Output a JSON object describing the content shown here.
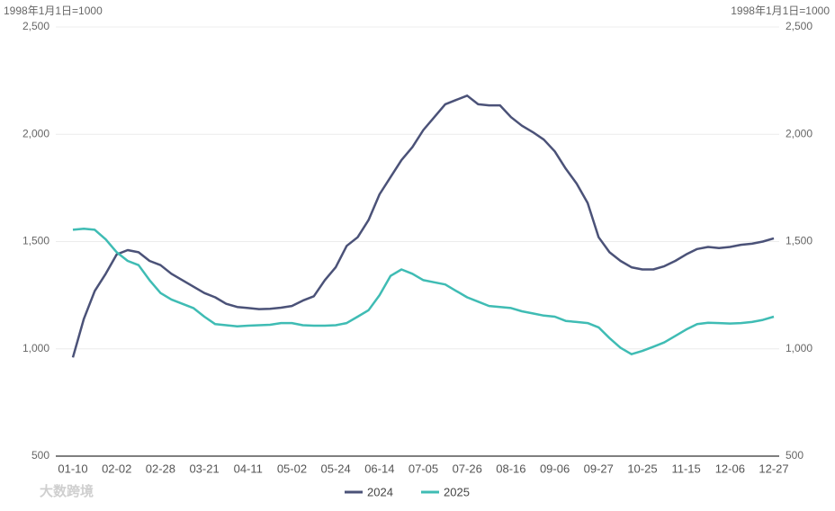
{
  "chart_data": {
    "type": "line",
    "y_axis_label": "1998年1月1日=1000",
    "y2_axis_label": "1998年1月1日=1000",
    "categories": [
      "01-10",
      null,
      null,
      null,
      "02-02",
      null,
      null,
      null,
      "02-28",
      null,
      null,
      null,
      "03-21",
      null,
      null,
      null,
      "04-11",
      null,
      null,
      null,
      "05-02",
      null,
      null,
      null,
      "05-24",
      null,
      null,
      null,
      "06-14",
      null,
      null,
      null,
      "07-05",
      null,
      null,
      null,
      "07-26",
      null,
      null,
      null,
      "08-16",
      null,
      null,
      null,
      "09-06",
      null,
      null,
      null,
      "09-27",
      null,
      null,
      null,
      "10-25",
      null,
      null,
      null,
      "11-15",
      null,
      null,
      null,
      "12-06",
      null,
      null,
      null,
      "12-27"
    ],
    "series": [
      {
        "name": "2024",
        "color": "#4b5278",
        "values": [
          960,
          1140,
          1270,
          1350,
          1440,
          1460,
          1450,
          1410,
          1390,
          1350,
          1320,
          1290,
          1260,
          1240,
          1210,
          1195,
          1190,
          1185,
          1187,
          1192,
          1200,
          1225,
          1245,
          1320,
          1380,
          1480,
          1520,
          1600,
          1720,
          1800,
          1880,
          1940,
          2020,
          2080,
          2140,
          2160,
          2180,
          2140,
          2135,
          2135,
          2080,
          2040,
          2010,
          1975,
          1920,
          1840,
          1770,
          1680,
          1520,
          1450,
          1410,
          1380,
          1370,
          1370,
          1385,
          1410,
          1440,
          1465,
          1475,
          1470,
          1475,
          1485,
          1490,
          1500,
          1515
        ]
      },
      {
        "name": "2025",
        "color": "#3fbcb4",
        "values": [
          1555,
          1560,
          1555,
          1510,
          1450,
          1410,
          1390,
          1320,
          1260,
          1230,
          1210,
          1190,
          1150,
          1115,
          1110,
          1105,
          1108,
          1110,
          1112,
          1120,
          1120,
          1110,
          1108,
          1108,
          1110,
          1120,
          1150,
          1180,
          1250,
          1340,
          1370,
          1350,
          1320,
          1310,
          1300,
          1270,
          1240,
          1220,
          1200,
          1195,
          1190,
          1175,
          1165,
          1155,
          1150,
          1130,
          1125,
          1120,
          1100,
          1050,
          1005,
          975,
          990,
          1010,
          1030,
          1060,
          1090,
          1115,
          1122,
          1120,
          1118,
          1120,
          1125,
          1135,
          1150
        ]
      }
    ],
    "ylim": [
      500,
      2500
    ],
    "yticks": [
      {
        "value": 500,
        "label": "500"
      },
      {
        "value": 1000,
        "label": "1,000"
      },
      {
        "value": 1500,
        "label": "1,500"
      },
      {
        "value": 2000,
        "label": "2,000"
      },
      {
        "value": 2500,
        "label": "2,500"
      }
    ],
    "y2lim": [
      500,
      2500
    ],
    "y2ticks": [
      {
        "value": 500,
        "label": "500"
      },
      {
        "value": 1000,
        "label": "1,000"
      },
      {
        "value": 1500,
        "label": "1,500"
      },
      {
        "value": 2000,
        "label": "2,000"
      },
      {
        "value": 2500,
        "label": "2,500"
      }
    ],
    "grid": true,
    "legend": "bottom",
    "watermark": "大数跨境"
  }
}
